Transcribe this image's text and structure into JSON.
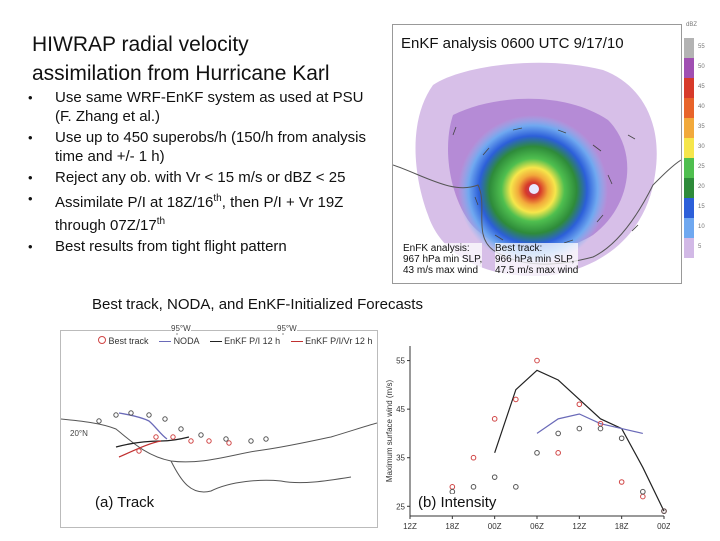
{
  "slide": {
    "title_line1": "HIWRAP radial velocity",
    "title_line2": "assimilation from Hurricane Karl",
    "bullet_marker": "•",
    "bullets": [
      {
        "text": "Use same WRF-EnKF system as used at PSU (F. Zhang et al.)"
      },
      {
        "text": "Use up to 450 superobs/h (150/h from analysis time and +/- 1 h)"
      },
      {
        "text": "Reject any ob. with Vr < 15 m/s or dBZ < 25"
      },
      {
        "pre": "Assimilate P/I at 18Z/16",
        "sup1": "th",
        "mid": ", then P/I + Vr 19Z through 07Z/17",
        "sup2": "th"
      },
      {
        "text": "Best results from tight flight pattern"
      }
    ],
    "subtitle": "Best track, NODA, and EnKF-Initialized Forecasts"
  },
  "analysis_map": {
    "title": "EnKF analysis 0600 UTC 9/17/10",
    "enkf_box": [
      "EnFK analysis:",
      "967 hPa min SLP,",
      "43 m/s max wind"
    ],
    "best_box": [
      "Best track:",
      "966 hPa min SLP,",
      "47.5 m/s max wind"
    ],
    "colorbar_unit": "dBZ",
    "colorbar_ticks": [
      "55",
      "50",
      "45",
      "40",
      "35",
      "30",
      "25",
      "20",
      "15",
      "10",
      "5"
    ],
    "colorbar_colors": [
      "#b3b3b3",
      "#a04fb2",
      "#d73a2a",
      "#e8642a",
      "#f2a93b",
      "#f6e64b",
      "#4fbf4f",
      "#2e8b3a",
      "#2c5fd9",
      "#6fa8f0",
      "#d2b9e6"
    ]
  },
  "track_panel": {
    "label": "(a) Track",
    "lon_labels": [
      "95°W",
      "95°W"
    ],
    "lat_label": "20°N",
    "legend": [
      "Best track",
      "NODA",
      "EnKF P/I 12 h",
      "EnKF P/I/Vr 12 h"
    ],
    "colors": {
      "best": "#d04545",
      "noda": "#6a6ab8",
      "enkf_pi": "#222222",
      "enkf_pivr": "#c03030",
      "coast": "#555555"
    }
  },
  "intensity_panel": {
    "label": "(b) Intensity",
    "ylabel": "Maximum surface wind (m/s)",
    "y_ticks": [
      "55",
      "45",
      "35",
      "25"
    ],
    "x_ticks": [
      "12Z",
      "18Z",
      "00Z",
      "06Z",
      "12Z",
      "18Z",
      "00Z"
    ],
    "colors": {
      "best": "#d04545",
      "noda": "#6a6ab8",
      "enkf": "#222222"
    }
  },
  "chart_data": {
    "type": "line",
    "title": "",
    "xlabel": "",
    "ylabel": "Maximum surface wind (m/s)",
    "categories": [
      "12Z",
      "18Z",
      "00Z",
      "06Z",
      "12Z",
      "18Z",
      "00Z"
    ],
    "ylim": [
      23,
      58
    ],
    "series": [
      {
        "name": "",
        "x": [
          6,
          12,
          18,
          24,
          30,
          36,
          42,
          48,
          54,
          60,
          66,
          72
        ],
        "values": [
          25,
          29,
          35,
          43,
          47,
          55,
          36,
          46,
          42,
          30,
          27,
          24
        ]
      },
      {
        "name": "",
        "x": [
          6,
          12,
          18,
          24,
          30,
          36,
          42,
          48,
          54,
          60,
          66,
          72
        ],
        "values": [
          25,
          28,
          29,
          31,
          29,
          36,
          40,
          41,
          41,
          39,
          28,
          24
        ]
      },
      {
        "name": "",
        "x": [
          24,
          30,
          36,
          42,
          48,
          54,
          60,
          66,
          72
        ],
        "values": [
          36,
          49,
          53,
          51,
          47,
          43,
          41,
          33,
          24
        ]
      },
      {
        "name": "",
        "x": [
          36,
          42,
          48,
          54,
          60,
          66
        ],
        "values": [
          40,
          43,
          44,
          42,
          41,
          40
        ]
      }
    ]
  }
}
